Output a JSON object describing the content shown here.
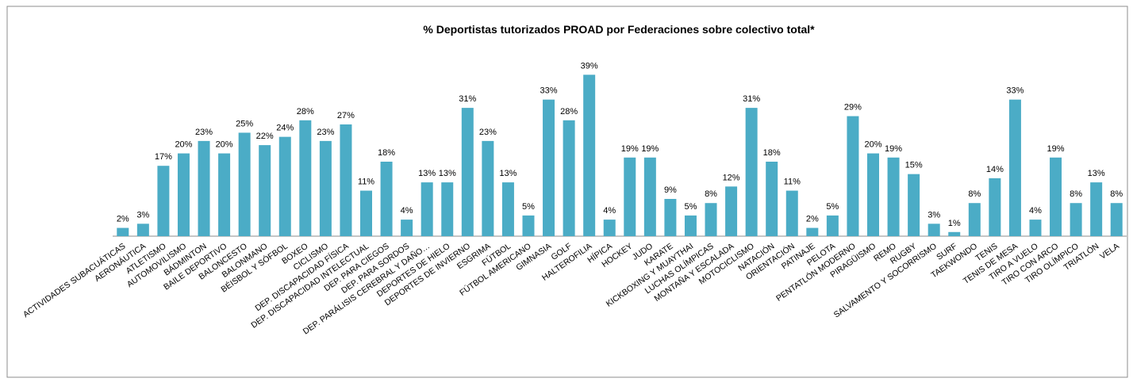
{
  "chart_data": {
    "type": "bar",
    "title": "% Deportistas  tutorizados PROAD por Federaciones sobre colectivo total*",
    "categories": [
      "ACTIVIDADES SUBACUÁTICAS",
      "AERONÁUTICA",
      "ATLETISMO",
      "AUTOMOVILISMO",
      "BÁDMINTON",
      "BAILE DEPORTIVO",
      "BALONCESTO",
      "BALONMANO",
      "BÉISBOL Y SÓFBOL",
      "BOXEO",
      "CICLISMO",
      "DEP. DISCAPACIDAD FÍSICA",
      "DEP. DISCAPACIDAD INTELECTUAL",
      "DEP. PARA CIEGOS",
      "DEP. PARA SORDOS",
      "DEP. PARÁLISIS CEREBRAL Y DAÑO…",
      "DEPORTES DE HIELO",
      "DEPORTES DE INVIERNO",
      "ESGRIMA",
      "FÚTBOL",
      "FÚTBOL AMERICANO",
      "GIMNASIA",
      "GOLF",
      "HALTEROFILIA",
      "HÍPICA",
      "HOCKEY",
      "JUDO",
      "KARATE",
      "KICKBOXING Y MUAYTHAI",
      "LUCHAS OLÍMPICAS",
      "MONTAÑA Y ESCALADA",
      "MOTOCICLISMO",
      "NATACIÓN",
      "ORIENTACIÓN",
      "PATINAJE",
      "PELOTA",
      "PENTATLÓN MODERNO",
      "PIRAGÜISMO",
      "REMO",
      "RUGBY",
      "SALVAMENTO Y SOCORRISMO",
      "SURF",
      "TAEKWONDO",
      "TENIS",
      "TENIS DE MESA",
      "TIRO A VUELO",
      "TIRO CON ARCO",
      "TIRO OLÍMPICO",
      "TRIATLÓN",
      "VELA"
    ],
    "values": [
      2,
      3,
      17,
      20,
      23,
      20,
      25,
      22,
      24,
      28,
      23,
      27,
      11,
      18,
      4,
      13,
      13,
      31,
      23,
      13,
      5,
      33,
      28,
      39,
      4,
      19,
      19,
      9,
      5,
      8,
      12,
      31,
      18,
      11,
      2,
      5,
      29,
      20,
      19,
      15,
      3,
      1,
      8,
      14,
      33,
      4,
      19,
      8,
      13,
      8
    ],
    "value_labels": [
      "2%",
      "3%",
      "17%",
      "20%",
      "23%",
      "20%",
      "25%",
      "22%",
      "24%",
      "28%",
      "23%",
      "27%",
      "11%",
      "18%",
      "4%",
      "13%",
      "13%",
      "31%",
      "23%",
      "13%",
      "5%",
      "33%",
      "28%",
      "39%",
      "4%",
      "19%",
      "19%",
      "9%",
      "5%",
      "8%",
      "12%",
      "31%",
      "18%",
      "11%",
      "2%",
      "5%",
      "29%",
      "20%",
      "19%",
      "15%",
      "3%",
      "1%",
      "8%",
      "14%",
      "33%",
      "4%",
      "19%",
      "8%",
      "13%",
      "8%"
    ],
    "color": "#4bacc6",
    "ylim": [
      0,
      45
    ]
  }
}
